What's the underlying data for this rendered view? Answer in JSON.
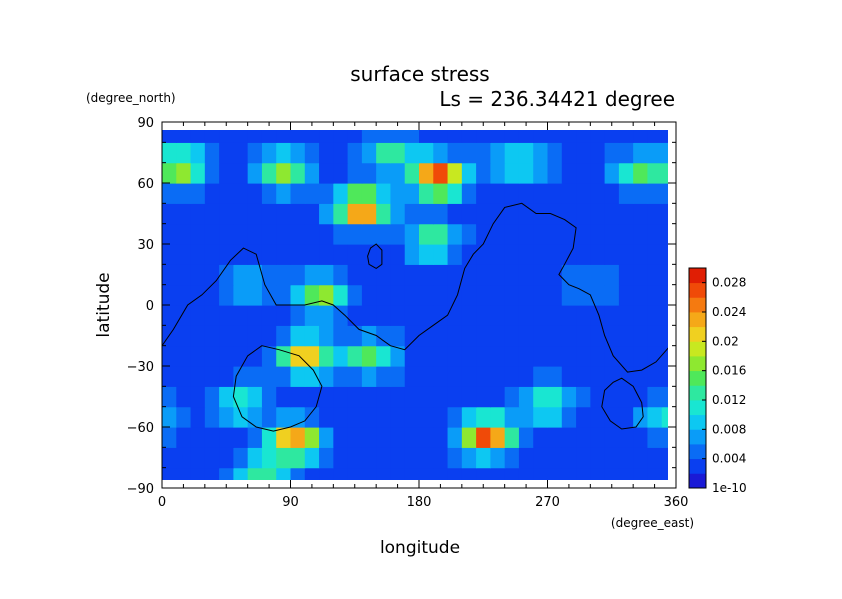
{
  "chart_data": {
    "type": "heatmap",
    "title": "surface stress",
    "subtitle": "Ls = 236.34421 degree",
    "xlabel": "longitude",
    "ylabel": "latitude",
    "x_unit": "(degree_east)",
    "y_unit": "(degree_north)",
    "xlim": [
      0,
      360
    ],
    "ylim": [
      -90,
      90
    ],
    "x_ticks": [
      "0",
      "90",
      "180",
      "270",
      "360"
    ],
    "y_ticks": [
      "90",
      "60",
      "30",
      "0",
      "−30",
      "−60",
      "−90"
    ],
    "x_tick_values": [
      0,
      90,
      180,
      270,
      360
    ],
    "y_tick_values": [
      90,
      60,
      30,
      0,
      -30,
      -60,
      -90
    ],
    "colorbar": {
      "min": 1e-10,
      "max": 0.03,
      "labels": [
        "1e-10",
        "0.004",
        "0.008",
        "0.012",
        "0.016",
        "0.02",
        "0.024",
        "0.028"
      ],
      "label_values": [
        0,
        0.004,
        0.008,
        0.012,
        0.016,
        0.02,
        0.024,
        0.028
      ],
      "colors": [
        "#1a1ad6",
        "#0a3ff0",
        "#0a6cf5",
        "#0a9cf8",
        "#0dc8f2",
        "#19e6d2",
        "#2ee8a0",
        "#4fe85a",
        "#8ee830",
        "#c8e820",
        "#f0d020",
        "#f5a818",
        "#f57a10",
        "#f04a08",
        "#e01e04"
      ]
    },
    "background_level": 0.003,
    "hotspots": [
      {
        "lon": 193,
        "lat": 63,
        "value": 0.026
      },
      {
        "lon": 140,
        "lat": 48,
        "value": 0.024
      },
      {
        "lon": 228,
        "lat": -64,
        "value": 0.024
      },
      {
        "lon": 93,
        "lat": -67,
        "value": 0.022
      },
      {
        "lon": 100,
        "lat": -25,
        "value": 0.02
      },
      {
        "lon": 12,
        "lat": 68,
        "value": 0.016
      },
      {
        "lon": 85,
        "lat": 66,
        "value": 0.014
      },
      {
        "lon": 112,
        "lat": 5,
        "value": 0.014
      },
      {
        "lon": 250,
        "lat": 70,
        "value": 0.01
      },
      {
        "lon": 190,
        "lat": 32,
        "value": 0.011
      },
      {
        "lon": 335,
        "lat": 66,
        "value": 0.011
      },
      {
        "lon": 55,
        "lat": -48,
        "value": 0.01
      },
      {
        "lon": 270,
        "lat": -48,
        "value": 0.01
      },
      {
        "lon": 145,
        "lat": -25,
        "value": 0.012
      },
      {
        "lon": 70,
        "lat": -83,
        "value": 0.011
      },
      {
        "lon": 160,
        "lat": 75,
        "value": 0.01
      },
      {
        "lon": 352,
        "lat": -55,
        "value": 0.008
      },
      {
        "lon": 300,
        "lat": 10,
        "value": 0.004
      },
      {
        "lon": 60,
        "lat": 10,
        "value": 0.006
      }
    ],
    "contours": [
      {
        "type": "line",
        "points": [
          [
            0,
            -20
          ],
          [
            8,
            -12
          ],
          [
            18,
            0
          ],
          [
            28,
            5
          ],
          [
            38,
            12
          ],
          [
            48,
            22
          ],
          [
            57,
            28
          ],
          [
            66,
            25
          ],
          [
            72,
            10
          ],
          [
            80,
            0
          ],
          [
            100,
            0
          ],
          [
            112,
            2
          ],
          [
            120,
            0
          ],
          [
            128,
            -5
          ],
          [
            138,
            -12
          ],
          [
            150,
            -15
          ],
          [
            160,
            -20
          ],
          [
            170,
            -22
          ],
          [
            180,
            -15
          ],
          [
            190,
            -10
          ],
          [
            200,
            -5
          ],
          [
            207,
            5
          ],
          [
            212,
            18
          ],
          [
            218,
            25
          ],
          [
            225,
            30
          ],
          [
            232,
            40
          ],
          [
            240,
            48
          ],
          [
            252,
            50
          ],
          [
            262,
            45
          ],
          [
            272,
            45
          ],
          [
            282,
            42
          ],
          [
            290,
            38
          ],
          [
            288,
            28
          ],
          [
            282,
            20
          ],
          [
            278,
            15
          ],
          [
            285,
            10
          ],
          [
            292,
            8
          ],
          [
            300,
            5
          ],
          [
            306,
            -5
          ],
          [
            310,
            -15
          ],
          [
            316,
            -25
          ],
          [
            326,
            -33
          ],
          [
            336,
            -32
          ],
          [
            346,
            -28
          ],
          [
            356,
            -20
          ],
          [
            360,
            -18
          ]
        ]
      },
      {
        "type": "closed",
        "points": [
          [
            145,
            20
          ],
          [
            150,
            18
          ],
          [
            154,
            20
          ],
          [
            154,
            27
          ],
          [
            150,
            30
          ],
          [
            146,
            28
          ],
          [
            144,
            24
          ]
        ]
      },
      {
        "type": "closed",
        "points": [
          [
            70,
            -20
          ],
          [
            82,
            -22
          ],
          [
            96,
            -25
          ],
          [
            106,
            -32
          ],
          [
            112,
            -40
          ],
          [
            108,
            -50
          ],
          [
            100,
            -57
          ],
          [
            90,
            -60
          ],
          [
            78,
            -62
          ],
          [
            66,
            -60
          ],
          [
            56,
            -55
          ],
          [
            50,
            -45
          ],
          [
            52,
            -35
          ],
          [
            60,
            -25
          ]
        ]
      },
      {
        "type": "closed",
        "points": [
          [
            322,
            -36
          ],
          [
            330,
            -40
          ],
          [
            336,
            -48
          ],
          [
            337,
            -55
          ],
          [
            332,
            -60
          ],
          [
            322,
            -61
          ],
          [
            314,
            -57
          ],
          [
            308,
            -50
          ],
          [
            310,
            -42
          ],
          [
            316,
            -38
          ]
        ]
      }
    ]
  }
}
